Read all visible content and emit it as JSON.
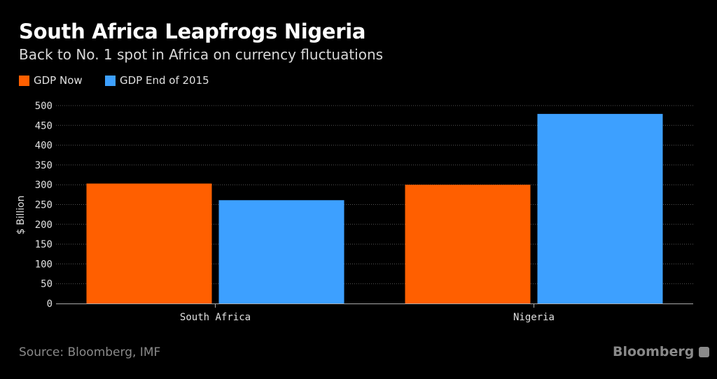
{
  "chart_data": {
    "type": "bar",
    "title": "South Africa Leapfrogs Nigeria",
    "subtitle": "Back to No. 1 spot in Africa on currency fluctuations",
    "categories": [
      "South Africa",
      "Nigeria"
    ],
    "series": [
      {
        "name": "GDP Now",
        "color": "#ff5f00",
        "values": [
          303,
          300
        ]
      },
      {
        "name": "GDP End of 2015",
        "color": "#3da0ff",
        "values": [
          261,
          479
        ]
      }
    ],
    "xlabel": "",
    "ylabel": "$ Billion",
    "ylim": [
      0,
      500
    ],
    "yticks": [
      0,
      50,
      100,
      150,
      200,
      250,
      300,
      350,
      400,
      450,
      500
    ],
    "grid": true,
    "legend_position": "top-left"
  },
  "footer": {
    "source": "Source: Bloomberg, IMF",
    "brand": "Bloomberg"
  }
}
